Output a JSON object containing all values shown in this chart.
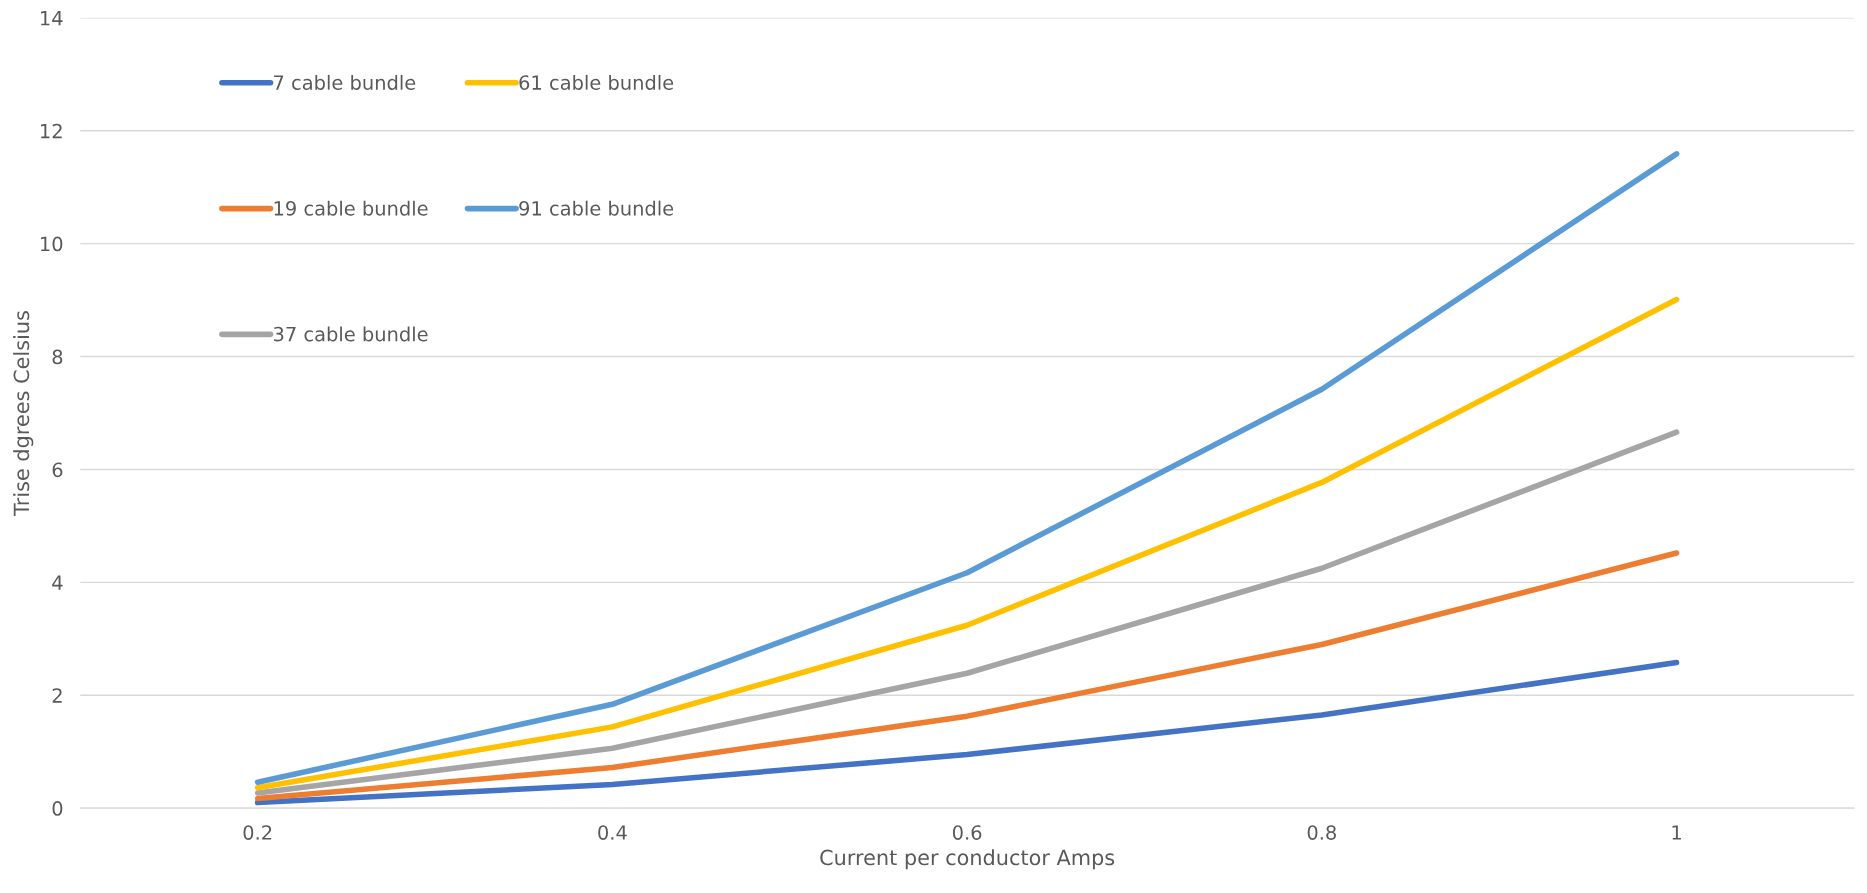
{
  "chart_data": {
    "type": "line",
    "xlabel": "Current per conductor Amps",
    "ylabel": "Trise dgrees Celsius",
    "categories": [
      "0.2",
      "0.4",
      "0.6",
      "0.8",
      "1"
    ],
    "series": [
      {
        "name": "7 cable bundle",
        "color": "#4472c4",
        "values": [
          0.1,
          0.42,
          0.95,
          1.65,
          2.58
        ]
      },
      {
        "name": "19 cable bundle",
        "color": "#ed7d31",
        "values": [
          0.17,
          0.72,
          1.63,
          2.9,
          4.52
        ]
      },
      {
        "name": "37 cable bundle",
        "color": "#a5a5a5",
        "values": [
          0.27,
          1.06,
          2.39,
          4.25,
          6.66
        ]
      },
      {
        "name": "61 cable bundle",
        "color": "#ffc000",
        "values": [
          0.36,
          1.44,
          3.24,
          5.77,
          9.01
        ]
      },
      {
        "name": "91 cable bundle",
        "color": "#5b9bd5",
        "values": [
          0.46,
          1.84,
          4.17,
          7.42,
          11.59
        ]
      }
    ],
    "ylim": [
      0,
      14
    ],
    "yticks": [
      0,
      2,
      4,
      6,
      8,
      10,
      12,
      14
    ],
    "grid": "y",
    "legend": "top left",
    "marker": "none",
    "line_style": "solid"
  }
}
